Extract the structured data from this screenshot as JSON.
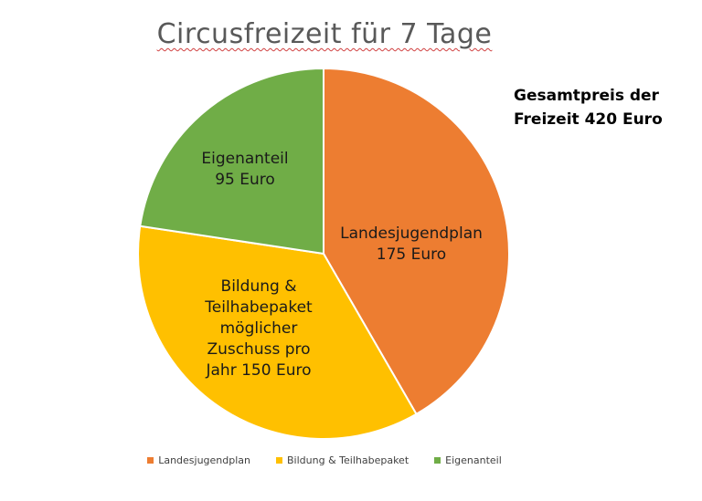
{
  "chart_data": {
    "type": "pie",
    "title": "Circusfreizeit für 7 Tage",
    "annotation_lines": [
      "Gesamtpreis der",
      "Freizeit 420 Euro"
    ],
    "slices": [
      {
        "name": "Landesjugendplan",
        "value": 175,
        "color": "#ed7d31",
        "label_lines": [
          "Landesjugendplan",
          "175 Euro"
        ]
      },
      {
        "name": "Bildung & Teilhabepaket",
        "value": 150,
        "color": "#ffc000",
        "label_lines": [
          "Bildung &",
          "Teilhabepaket",
          "möglicher",
          "Zuschuss pro",
          "Jahr 150 Euro"
        ]
      },
      {
        "name": "Eigenanteil",
        "value": 95,
        "color": "#70ad47",
        "label_lines": [
          "Eigenanteil",
          "95 Euro"
        ]
      }
    ],
    "legend_position": "bottom"
  }
}
